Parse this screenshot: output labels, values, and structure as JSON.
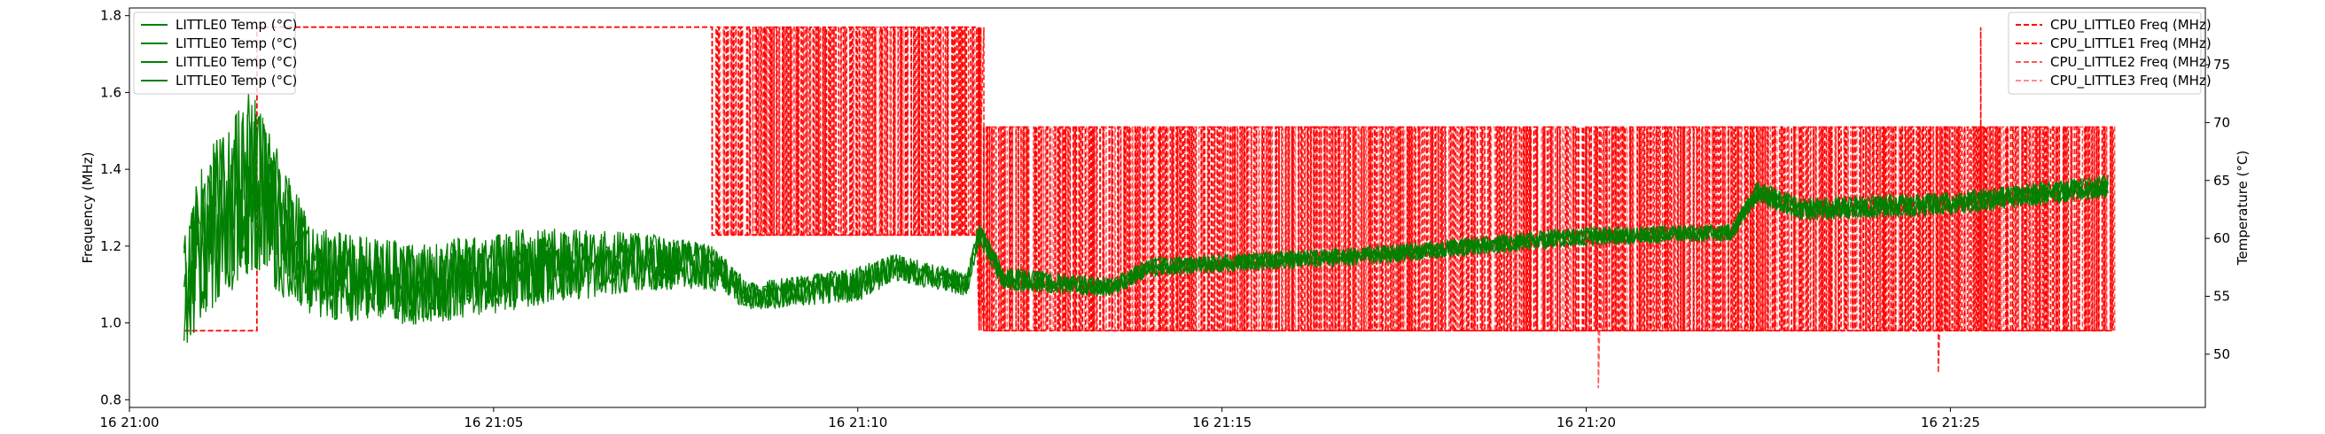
{
  "chart_data": {
    "type": "line",
    "x_axis": {
      "type": "time",
      "range": [
        "16 21:00",
        "16 21:28:30"
      ],
      "ticks": [
        "16 21:00",
        "16 21:05",
        "16 21:10",
        "16 21:15",
        "16 21:20",
        "16 21:25"
      ]
    },
    "y_left": {
      "label": "Frequency (MHz)",
      "range": [
        0.78,
        1.82
      ],
      "ticks": [
        "0.8",
        "1.0",
        "1.2",
        "1.4",
        "1.6",
        "1.8"
      ]
    },
    "y_right": {
      "label": "Temperature (°C)",
      "range": [
        45.4,
        79.9
      ],
      "ticks": [
        "50",
        "55",
        "60",
        "65",
        "70",
        "75"
      ]
    },
    "freq_series": [
      {
        "name": "CPU_LITTLE0 Freq (MHz)",
        "color": "#ff0000",
        "alpha": 1.0,
        "dash": "dashed"
      },
      {
        "name": "CPU_LITTLE1 Freq (MHz)",
        "color": "#ff0000",
        "alpha": 0.85,
        "dash": "dashed"
      },
      {
        "name": "CPU_LITTLE2 Freq (MHz)",
        "color": "#ff0000",
        "alpha": 0.65,
        "dash": "dashed"
      },
      {
        "name": "CPU_LITTLE3 Freq (MHz)",
        "color": "#ff0000",
        "alpha": 0.45,
        "dash": "dashed"
      }
    ],
    "freq_levels": {
      "low": 0.98,
      "mid": 1.229,
      "high": 1.51,
      "max": 1.77,
      "min_dip": 0.83,
      "min_dip2": 0.87
    },
    "freq_segments": [
      {
        "from": "16 21:00:45",
        "to": "16 21:01:45",
        "state": "low"
      },
      {
        "from": "16 21:01:45",
        "to": "16 21:08:00",
        "state": "max"
      },
      {
        "from": "16 21:08:00",
        "to": "16 21:11:40",
        "state": "toggle mid/max"
      },
      {
        "from": "16 21:11:40",
        "to": "16 21:27:10",
        "state": "toggle low/high"
      }
    ],
    "temp_series": [
      {
        "name": "LITTLE0 Temp (°C)",
        "color": "#008000"
      },
      {
        "name": "LITTLE0 Temp (°C)",
        "color": "#008000"
      },
      {
        "name": "LITTLE0 Temp (°C)",
        "color": "#008000"
      },
      {
        "name": "LITTLE0 Temp (°C)",
        "color": "#008000"
      }
    ],
    "temp_profile": [
      {
        "t": "16 21:00:45",
        "c": 55.0,
        "amp": 5.0
      },
      {
        "t": "16 21:01:00",
        "c": 60.0,
        "amp": 7.0
      },
      {
        "t": "16 21:01:40",
        "c": 65.0,
        "amp": 8.0
      },
      {
        "t": "16 21:02:30",
        "c": 57.0,
        "amp": 4.0
      },
      {
        "t": "16 21:04:00",
        "c": 56.0,
        "amp": 3.5
      },
      {
        "t": "16 21:05:30",
        "c": 57.5,
        "amp": 3.5
      },
      {
        "t": "16 21:07:00",
        "c": 58.0,
        "amp": 2.5
      },
      {
        "t": "16 21:08:00",
        "c": 57.5,
        "amp": 2.0
      },
      {
        "t": "16 21:08:30",
        "c": 55.0,
        "amp": 1.2
      },
      {
        "t": "16 21:10:00",
        "c": 56.0,
        "amp": 1.5
      },
      {
        "t": "16 21:10:30",
        "c": 57.5,
        "amp": 1.2
      },
      {
        "t": "16 21:11:30",
        "c": 56.0,
        "amp": 1.0
      },
      {
        "t": "16 21:11:40",
        "c": 60.5,
        "amp": 1.0
      },
      {
        "t": "16 21:12:00",
        "c": 56.5,
        "amp": 1.0
      },
      {
        "t": "16 21:13:30",
        "c": 55.8,
        "amp": 0.8
      },
      {
        "t": "16 21:14:00",
        "c": 57.5,
        "amp": 0.8
      },
      {
        "t": "16 21:17:00",
        "c": 58.5,
        "amp": 0.8
      },
      {
        "t": "16 21:20:00",
        "c": 60.2,
        "amp": 0.8
      },
      {
        "t": "16 21:22:00",
        "c": 60.5,
        "amp": 0.7
      },
      {
        "t": "16 21:22:20",
        "c": 64.0,
        "amp": 1.0
      },
      {
        "t": "16 21:23:00",
        "c": 62.5,
        "amp": 1.0
      },
      {
        "t": "16 21:25:00",
        "c": 63.0,
        "amp": 1.0
      },
      {
        "t": "16 21:27:10",
        "c": 64.5,
        "amp": 1.0
      }
    ],
    "legend_left": "top-left",
    "legend_right": "top-right",
    "grid": false
  }
}
